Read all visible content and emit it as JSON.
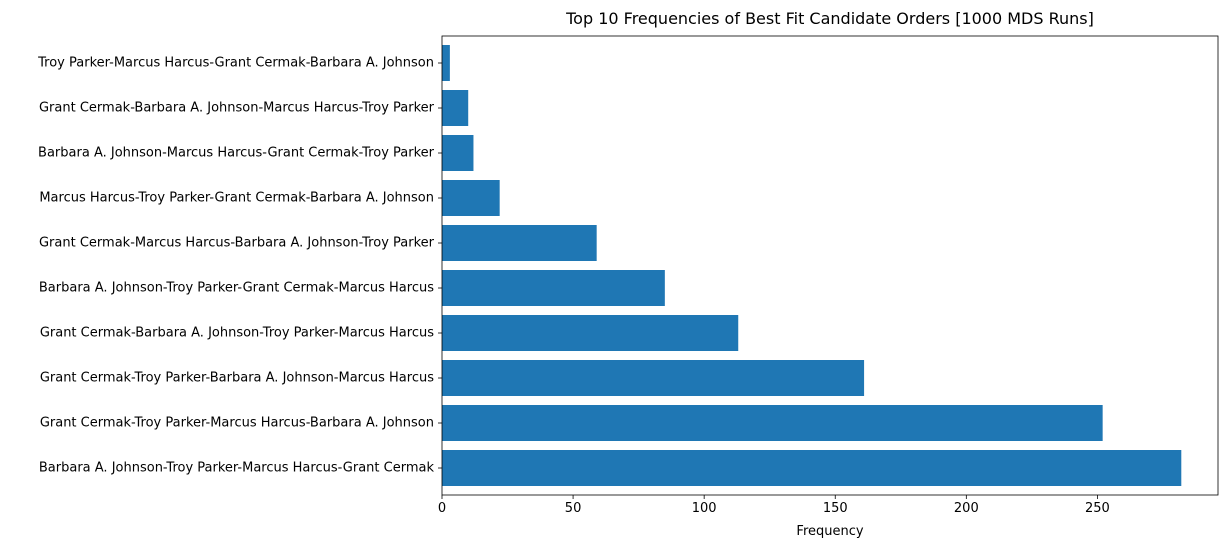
{
  "chart_data": {
    "type": "bar",
    "orientation": "horizontal",
    "title": "Top 10 Frequencies of Best Fit Candidate Orders [1000 MDS Runs]",
    "xlabel": "Frequency",
    "ylabel": "",
    "categories": [
      "Barbara A. Johnson-Troy Parker-Marcus Harcus-Grant Cermak",
      "Grant Cermak-Troy Parker-Marcus Harcus-Barbara A. Johnson",
      "Grant Cermak-Troy Parker-Barbara A. Johnson-Marcus Harcus",
      "Grant Cermak-Barbara A. Johnson-Troy Parker-Marcus Harcus",
      "Barbara A. Johnson-Troy Parker-Grant Cermak-Marcus Harcus",
      "Grant Cermak-Marcus Harcus-Barbara A. Johnson-Troy Parker",
      "Marcus Harcus-Troy Parker-Grant Cermak-Barbara A. Johnson",
      "Barbara A. Johnson-Marcus Harcus-Grant Cermak-Troy Parker",
      "Grant Cermak-Barbara A. Johnson-Marcus Harcus-Troy Parker",
      "Troy Parker-Marcus Harcus-Grant Cermak-Barbara A. Johnson"
    ],
    "values": [
      282,
      252,
      161,
      113,
      85,
      59,
      22,
      12,
      10,
      3
    ],
    "xlim": [
      0,
      296
    ],
    "xticks": [
      "0",
      "50",
      "100",
      "150",
      "200",
      "250"
    ],
    "grid": false,
    "bar_color": "#1f77b4"
  }
}
